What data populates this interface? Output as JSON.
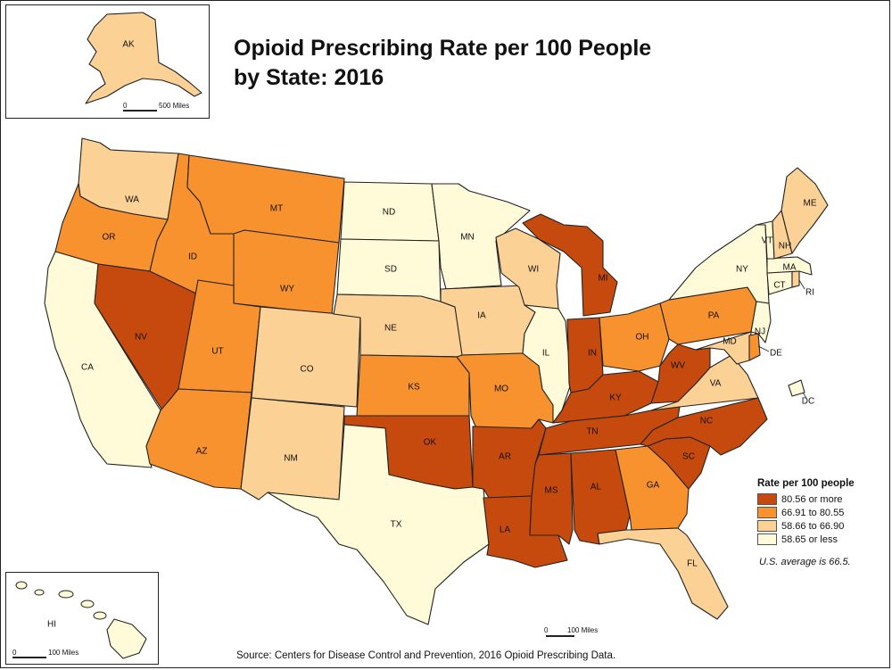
{
  "title": {
    "line1": "Opioid Prescribing Rate per 100 People",
    "line2": "by State: 2016"
  },
  "legend": {
    "title": "Rate per 100 people",
    "classes": [
      {
        "label": "80.56 or more",
        "color": "#c64a0e"
      },
      {
        "label": "66.91 to 80.55",
        "color": "#f7922e"
      },
      {
        "label": "58.66 to 66.90",
        "color": "#fbd195"
      },
      {
        "label": "58.65 or less",
        "color": "#fffad7"
      }
    ]
  },
  "average_note": "U.S. average is 66.5.",
  "source": "Source: Centers for Disease Control and Prevention, 2016 Opioid Prescribing Data.",
  "scale_bars": {
    "alaska": {
      "zero": "0",
      "dist": "500 Miles"
    },
    "hawaii": {
      "zero": "0",
      "dist": "100 Miles"
    },
    "main": {
      "zero": "0",
      "dist": "100 Miles"
    }
  },
  "states": [
    {
      "abbr": "WA",
      "class": 2
    },
    {
      "abbr": "OR",
      "class": 1
    },
    {
      "abbr": "CA",
      "class": 3
    },
    {
      "abbr": "NV",
      "class": 0
    },
    {
      "abbr": "ID",
      "class": 1
    },
    {
      "abbr": "MT",
      "class": 1
    },
    {
      "abbr": "WY",
      "class": 1
    },
    {
      "abbr": "UT",
      "class": 1
    },
    {
      "abbr": "AZ",
      "class": 1
    },
    {
      "abbr": "CO",
      "class": 2
    },
    {
      "abbr": "NM",
      "class": 2
    },
    {
      "abbr": "ND",
      "class": 3
    },
    {
      "abbr": "SD",
      "class": 3
    },
    {
      "abbr": "NE",
      "class": 2
    },
    {
      "abbr": "KS",
      "class": 1
    },
    {
      "abbr": "OK",
      "class": 0
    },
    {
      "abbr": "TX",
      "class": 3
    },
    {
      "abbr": "MN",
      "class": 3
    },
    {
      "abbr": "IA",
      "class": 2
    },
    {
      "abbr": "MO",
      "class": 1
    },
    {
      "abbr": "AR",
      "class": 0
    },
    {
      "abbr": "LA",
      "class": 0
    },
    {
      "abbr": "WI",
      "class": 2
    },
    {
      "abbr": "IL",
      "class": 3
    },
    {
      "abbr": "MI",
      "class": 0
    },
    {
      "abbr": "IN",
      "class": 0
    },
    {
      "abbr": "OH",
      "class": 1
    },
    {
      "abbr": "KY",
      "class": 0
    },
    {
      "abbr": "TN",
      "class": 0
    },
    {
      "abbr": "MS",
      "class": 0
    },
    {
      "abbr": "AL",
      "class": 0
    },
    {
      "abbr": "GA",
      "class": 1
    },
    {
      "abbr": "FL",
      "class": 2
    },
    {
      "abbr": "SC",
      "class": 0
    },
    {
      "abbr": "NC",
      "class": 0
    },
    {
      "abbr": "VA",
      "class": 2
    },
    {
      "abbr": "WV",
      "class": 0
    },
    {
      "abbr": "PA",
      "class": 1
    },
    {
      "abbr": "NY",
      "class": 3
    },
    {
      "abbr": "MD",
      "class": 2
    },
    {
      "abbr": "DE",
      "class": 1
    },
    {
      "abbr": "NJ",
      "class": 3
    },
    {
      "abbr": "CT",
      "class": 3
    },
    {
      "abbr": "RI",
      "class": 2
    },
    {
      "abbr": "MA",
      "class": 3
    },
    {
      "abbr": "VT",
      "class": 3
    },
    {
      "abbr": "NH",
      "class": 2
    },
    {
      "abbr": "ME",
      "class": 2
    },
    {
      "abbr": "DC",
      "class": 3
    },
    {
      "abbr": "AK",
      "class": 2
    },
    {
      "abbr": "HI",
      "class": 3
    }
  ]
}
